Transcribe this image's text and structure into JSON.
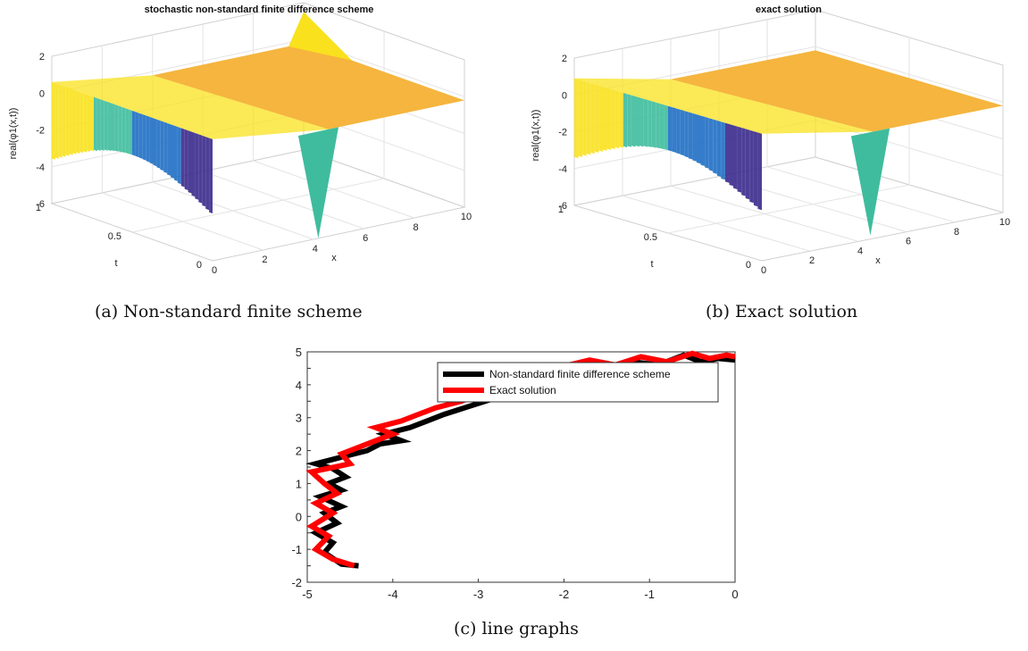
{
  "captions": {
    "a": "(a) Non-standard finite scheme",
    "b": "(b) Exact solution",
    "c": "(c) line graphs"
  },
  "colors": {
    "surface_flat": "#f5b53e",
    "surface_high": "#f9e11e",
    "surface_mid": "#3fbc9d",
    "surface_low": "#1f6fc4",
    "surface_deep": "#3a2a8c",
    "line_numeric": "#000000",
    "line_exact": "#ff0000"
  },
  "chart_data": [
    {
      "type": "surface",
      "title": "stochastic non-standard finite difference scheme",
      "xlabel": "x",
      "ylabel": "t",
      "zlabel": "real(φ1(x,t))",
      "xlim": [
        0,
        10
      ],
      "ylim": [
        0,
        1
      ],
      "zlim": [
        -6,
        2
      ],
      "x_ticks": [
        "0",
        "2",
        "4",
        "6",
        "8",
        "10"
      ],
      "y_ticks": [
        "0",
        "0.5",
        "1"
      ],
      "z_ticks": [
        "2",
        "0",
        "-2",
        "-4",
        "-6"
      ],
      "grid": true,
      "notes_values": {
        "flat_plateau_z": -0.2,
        "edge_x0_t1_range": [
          -6,
          1
        ],
        "trough_x": 4.2,
        "trough_t": 0,
        "trough_z": -6,
        "crest_x": 10,
        "crest_t": 1,
        "crest_z": 1.5
      }
    },
    {
      "type": "surface",
      "title": "exact solution",
      "xlabel": "x",
      "ylabel": "t",
      "zlabel": "real(φ1(x,t))",
      "xlim": [
        0,
        10
      ],
      "ylim": [
        0,
        1
      ],
      "zlim": [
        -6,
        2
      ],
      "x_ticks": [
        "0",
        "2",
        "4",
        "6",
        "8",
        "10"
      ],
      "y_ticks": [
        "0",
        "0.5",
        "1"
      ],
      "z_ticks": [
        "2",
        "0",
        "-2",
        "-4",
        "-6"
      ],
      "grid": true,
      "notes_values": {
        "flat_plateau_z": -0.2,
        "edge_x0_t1_range": [
          -6,
          1.5
        ],
        "trough_x": 4.5,
        "trough_t": 0,
        "trough_z": -5.8
      }
    },
    {
      "type": "line",
      "title": "",
      "xlabel": "",
      "ylabel": "",
      "xlim": [
        -5,
        0
      ],
      "ylim": [
        -2,
        5
      ],
      "x_ticks": [
        "-5",
        "-4",
        "-3",
        "-2",
        "-1",
        "0"
      ],
      "y_ticks": [
        "-2",
        "-1.5",
        "-1",
        "-0.5",
        "0",
        "0.5",
        "1",
        "1.5",
        "2",
        "2.5",
        "3",
        "3.5",
        "4",
        "4.5",
        "5"
      ],
      "legend_position": "top-right",
      "series": [
        {
          "name": "Non-standard finite difference scheme",
          "x": [
            -4.4,
            -4.6,
            -4.8,
            -4.7,
            -4.9,
            -4.65,
            -4.8,
            -4.6,
            -4.85,
            -4.6,
            -4.75,
            -4.55,
            -4.7,
            -4.9,
            -4.6,
            -4.3,
            -4.15,
            -3.9,
            -4.1,
            -3.8,
            -3.6,
            -3.4,
            -3.1,
            -2.8,
            -2.4,
            -2.0,
            -1.8,
            -1.5,
            -1.2,
            -0.9,
            -0.6,
            -0.4,
            -0.2,
            0.0
          ],
          "y": [
            -1.5,
            -1.45,
            -1.1,
            -0.8,
            -0.5,
            -0.2,
            0.1,
            0.3,
            0.6,
            0.8,
            1.0,
            1.2,
            1.45,
            1.6,
            1.8,
            2.0,
            2.2,
            2.3,
            2.5,
            2.7,
            2.9,
            3.1,
            3.35,
            3.6,
            3.9,
            4.4,
            4.6,
            4.55,
            4.7,
            4.6,
            4.9,
            4.7,
            4.8,
            4.75
          ]
        },
        {
          "name": "Exact solution",
          "x": [
            -4.45,
            -4.7,
            -4.9,
            -4.75,
            -4.95,
            -4.7,
            -4.9,
            -4.65,
            -4.8,
            -4.95,
            -4.5,
            -4.6,
            -4.3,
            -4.0,
            -4.2,
            -3.9,
            -3.7,
            -3.5,
            -3.2,
            -2.9,
            -2.5,
            -2.1,
            -1.7,
            -1.4,
            -1.1,
            -0.8,
            -0.5,
            -0.3,
            -0.1,
            0.0
          ],
          "y": [
            -1.5,
            -1.3,
            -1.0,
            -0.6,
            -0.3,
            0.1,
            0.4,
            0.7,
            1.0,
            1.35,
            1.6,
            1.9,
            2.2,
            2.5,
            2.7,
            2.9,
            3.1,
            3.3,
            3.5,
            3.8,
            4.1,
            4.5,
            4.75,
            4.6,
            4.85,
            4.7,
            4.95,
            4.8,
            4.9,
            4.85
          ]
        }
      ]
    }
  ]
}
